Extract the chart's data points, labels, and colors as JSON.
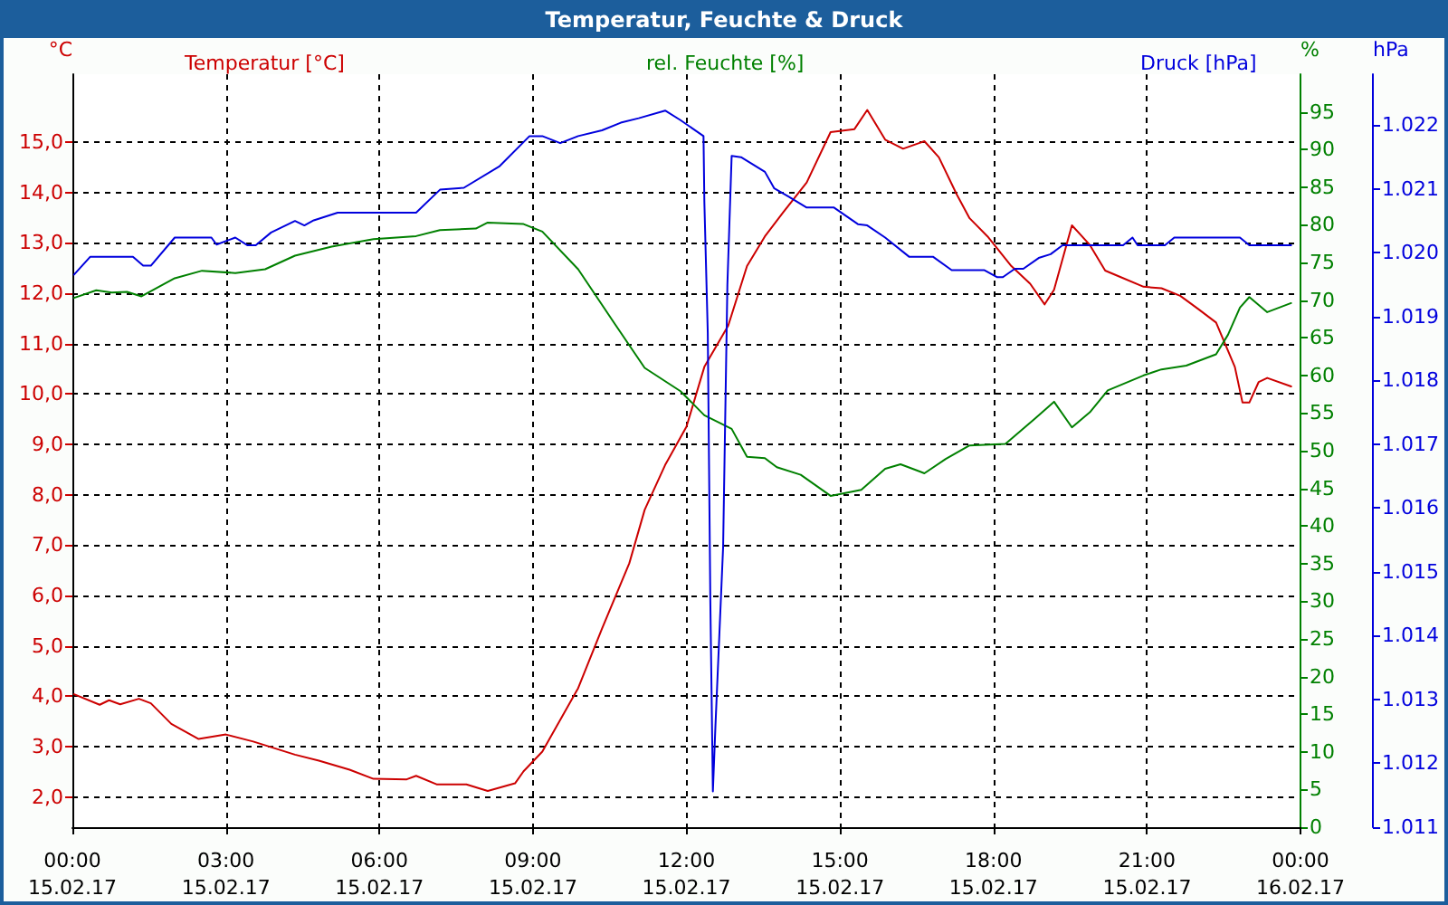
{
  "chart_data": {
    "type": "line",
    "title": "Temperatur, Feuchte & Druck",
    "ylabel": "°C",
    "y2label": "%",
    "y3label": "hPa",
    "xlim": [
      "--02-15T00:00",
      "--02-16T00:00"
    ],
    "xticks": [
      {
        "value": "--02-15T00:00",
        "label": "00:00\n15.02.17"
      },
      {
        "value": "--02-15T03:00",
        "label": "03:00\n15.02.17"
      },
      {
        "value": "--02-15T06:00",
        "label": "06:00\n15.02.17"
      },
      {
        "value": "--02-15T09:00",
        "label": "09:00\n15.02.17"
      },
      {
        "value": "--02-15T12:00",
        "label": "12:00\n15.02.17"
      },
      {
        "value": "--02-15T15:00",
        "label": "15:00\n15.02.17"
      },
      {
        "value": "--02-15T18:00",
        "label": "18:00\n15.02.17"
      },
      {
        "value": "--02-15T21:00",
        "label": "21:00\n15.02.17"
      },
      {
        "value": "--02-16T00:00",
        "label": "00:00\n16.02.17"
      }
    ],
    "ylim": [
      1.4,
      16.35
    ],
    "yticks": [
      {
        "value": 2,
        "label": "2,0"
      },
      {
        "value": 3,
        "label": "3,0"
      },
      {
        "value": 4,
        "label": "4,0"
      },
      {
        "value": 5,
        "label": "5,0"
      },
      {
        "value": 6,
        "label": "6,0"
      },
      {
        "value": 7,
        "label": "7,0"
      },
      {
        "value": 8,
        "label": "8,0"
      },
      {
        "value": 9,
        "label": "9,0"
      },
      {
        "value": 10,
        "label": "10,0"
      },
      {
        "value": 11,
        "label": "11,0"
      },
      {
        "value": 12,
        "label": "12,0"
      },
      {
        "value": 13,
        "label": "13,0"
      },
      {
        "value": 14,
        "label": "14,0"
      },
      {
        "value": 15,
        "label": "15,0"
      }
    ],
    "y2lim": [
      0,
      100
    ],
    "y2ticks": [
      0,
      5,
      10,
      15,
      20,
      25,
      30,
      35,
      40,
      45,
      50,
      55,
      60,
      65,
      70,
      75,
      80,
      85,
      90,
      95
    ],
    "y3lim": [
      1011,
      1022.8
    ],
    "y3ticks": [
      {
        "value": 1011,
        "label": "1.011"
      },
      {
        "value": 1012,
        "label": "1.012"
      },
      {
        "value": 1013,
        "label": "1.013"
      },
      {
        "value": 1014,
        "label": "1.014"
      },
      {
        "value": 1015,
        "label": "1.015"
      },
      {
        "value": 1016,
        "label": "1.016"
      },
      {
        "value": 1017,
        "label": "1.017"
      },
      {
        "value": 1018,
        "label": "1.018"
      },
      {
        "value": 1019,
        "label": "1.019"
      },
      {
        "value": 1020,
        "label": "1.020"
      },
      {
        "value": 1021,
        "label": "1.021"
      },
      {
        "value": 1022,
        "label": "1.022"
      }
    ],
    "grid": true,
    "legend": "top",
    "marker": "none",
    "line_style": "solid",
    "series": [
      {
        "name": "Temperatur [°C]",
        "color": "#cc0000",
        "axis": "y",
        "x": [
          "--02-15T00:02",
          "--02-15T00:32",
          "--02-15T00:43",
          "--02-15T00:56",
          "--02-15T01:18",
          "--02-15T01:32",
          "--02-15T01:56",
          "--02-15T02:28",
          "--02-15T03:00",
          "--02-15T03:32",
          "--02-15T04:21",
          "--02-15T04:49",
          "--02-15T05:25",
          "--02-15T05:53",
          "--02-15T06:32",
          "--02-15T06:43",
          "--02-15T07:07",
          "--02-15T07:42",
          "--02-15T08:07",
          "--02-15T08:39",
          "--02-15T08:49",
          "--02-15T09:11",
          "--02-15T09:53",
          "--02-15T10:21",
          "--02-15T10:53",
          "--02-15T11:11",
          "--02-15T11:35",
          "--02-15T12:00",
          "--02-15T12:21",
          "--02-15T12:49",
          "--02-15T13:11",
          "--02-15T13:32",
          "--02-15T13:53",
          "--02-15T14:21",
          "--02-15T14:49",
          "--02-15T15:17",
          "--02-15T15:32",
          "--02-15T15:53",
          "--02-15T16:14",
          "--02-15T16:39",
          "--02-15T16:56",
          "--02-15T17:17",
          "--02-15T17:32",
          "--02-15T17:53",
          "--02-15T18:21",
          "--02-15T18:43",
          "--02-15T19:00",
          "--02-15T19:11",
          "--02-15T19:32",
          "--02-15T19:53",
          "--02-15T20:11",
          "--02-15T20:28",
          "--02-15T20:56",
          "--02-15T21:17",
          "--02-15T21:39",
          "--02-15T22:00",
          "--02-15T22:21",
          "--02-15T22:43",
          "--02-15T22:52",
          "--02-15T23:00",
          "--02-15T23:11",
          "--02-15T23:21",
          "--02-15T23:49"
        ],
        "values": [
          4.04,
          3.83,
          3.92,
          3.84,
          3.95,
          3.86,
          3.45,
          3.15,
          3.24,
          3.1,
          2.84,
          2.72,
          2.54,
          2.36,
          2.35,
          2.42,
          2.25,
          2.25,
          2.12,
          2.27,
          2.51,
          2.9,
          4.16,
          5.34,
          6.64,
          7.7,
          8.59,
          9.35,
          10.54,
          11.36,
          12.54,
          13.13,
          13.6,
          14.2,
          15.2,
          15.26,
          15.64,
          15.05,
          14.87,
          15.02,
          14.7,
          13.96,
          13.49,
          13.13,
          12.54,
          12.19,
          11.78,
          12.07,
          13.35,
          12.96,
          12.45,
          12.33,
          12.13,
          12.1,
          11.95,
          11.69,
          11.42,
          10.54,
          9.83,
          9.83,
          10.24,
          10.32,
          10.15
        ]
      },
      {
        "name": "rel. Feuchte [%]",
        "color": "#008000",
        "axis": "y2",
        "x": [
          "--02-15T00:02",
          "--02-15T00:28",
          "--02-15T00:46",
          "--02-15T01:04",
          "--02-15T01:21",
          "--02-15T02:00",
          "--02-15T02:32",
          "--02-15T03:11",
          "--02-15T03:46",
          "--02-15T04:21",
          "--02-15T05:04",
          "--02-15T05:53",
          "--02-15T06:43",
          "--02-15T07:11",
          "--02-15T07:53",
          "--02-15T08:07",
          "--02-15T08:49",
          "--02-15T09:11",
          "--02-15T09:53",
          "--02-15T10:35",
          "--02-15T11:11",
          "--02-15T11:53",
          "--02-15T12:21",
          "--02-15T12:53",
          "--02-15T13:11",
          "--02-15T13:32",
          "--02-15T13:46",
          "--02-15T14:14",
          "--02-15T14:49",
          "--02-15T15:25",
          "--02-15T15:53",
          "--02-15T16:11",
          "--02-15T16:39",
          "--02-15T17:04",
          "--02-15T17:32",
          "--02-15T18:14",
          "--02-15T18:49",
          "--02-15T19:11",
          "--02-15T19:32",
          "--02-15T19:53",
          "--02-15T20:14",
          "--02-15T20:56",
          "--02-15T21:17",
          "--02-15T21:46",
          "--02-15T22:21",
          "--02-15T22:35",
          "--02-15T22:49",
          "--02-15T23:00",
          "--02-15T23:21",
          "--02-15T23:49"
        ],
        "values": [
          70.3,
          71.3,
          71.0,
          71.1,
          70.5,
          72.9,
          73.9,
          73.6,
          74.1,
          75.9,
          77.1,
          78.1,
          78.5,
          79.3,
          79.5,
          80.3,
          80.1,
          79.1,
          74.1,
          67.0,
          61.0,
          57.9,
          54.7,
          52.9,
          49.2,
          49.0,
          47.8,
          46.8,
          44.0,
          44.8,
          47.6,
          48.2,
          47.0,
          48.9,
          50.7,
          50.9,
          54.3,
          56.5,
          53.1,
          55.1,
          58.0,
          60.0,
          60.8,
          61.3,
          62.8,
          65.4,
          69.0,
          70.4,
          68.4,
          69.6
        ]
      },
      {
        "name": "Druck [hPa]",
        "color": "#0000dd",
        "axis": "y3",
        "x": [
          "--02-15T00:02",
          "--02-15T00:21",
          "--02-15T01:11",
          "--02-15T01:23",
          "--02-15T01:32",
          "--02-15T02:00",
          "--02-15T02:43",
          "--02-15T02:49",
          "--02-15T03:11",
          "--02-15T03:25",
          "--02-15T03:35",
          "--02-15T03:53",
          "--02-15T04:21",
          "--02-15T04:32",
          "--02-15T04:43",
          "--02-15T05:11",
          "--02-15T06:43",
          "--02-15T07:11",
          "--02-15T07:39",
          "--02-15T08:21",
          "--02-15T08:56",
          "--02-15T09:11",
          "--02-15T09:32",
          "--02-15T09:53",
          "--02-15T10:21",
          "--02-15T10:43",
          "--02-15T11:04",
          "--02-15T11:35",
          "--02-15T11:53",
          "--02-15T12:20",
          "--02-15T12:21",
          "--02-15T12:25",
          "--02-15T12:28",
          "--02-15T12:31",
          "--02-15T12:34",
          "--02-15T12:43",
          "--02-15T12:48",
          "--02-15T12:53",
          "--02-15T13:04",
          "--02-15T13:32",
          "--02-15T13:43",
          "--02-15T14:00",
          "--02-15T14:21",
          "--02-15T14:53",
          "--02-15T15:21",
          "--02-15T15:32",
          "--02-15T15:53",
          "--02-15T16:21",
          "--02-15T16:49",
          "--02-15T17:11",
          "--02-15T17:49",
          "--02-15T18:04",
          "--02-15T18:11",
          "--02-15T18:25",
          "--02-15T18:35",
          "--02-15T18:53",
          "--02-15T19:07",
          "--02-15T19:21",
          "--02-15T20:32",
          "--02-15T20:43",
          "--02-15T20:49",
          "--02-15T21:21",
          "--02-15T21:32",
          "--02-15T22:49",
          "--02-15T23:00",
          "--02-15T23:49"
        ],
        "values": [
          1019.66,
          1019.94,
          1019.94,
          1019.8,
          1019.8,
          1020.24,
          1020.24,
          1020.13,
          1020.24,
          1020.12,
          1020.12,
          1020.32,
          1020.5,
          1020.43,
          1020.51,
          1020.63,
          1020.63,
          1020.99,
          1021.02,
          1021.36,
          1021.83,
          1021.83,
          1021.72,
          1021.83,
          1021.92,
          1022.04,
          1022.11,
          1022.23,
          1022.08,
          1021.83,
          1020.8,
          1018.75,
          1014.55,
          1011.56,
          1012.59,
          1015.39,
          1019.5,
          1021.52,
          1021.5,
          1021.27,
          1021.01,
          1020.88,
          1020.71,
          1020.71,
          1020.45,
          1020.43,
          1020.24,
          1019.94,
          1019.94,
          1019.73,
          1019.73,
          1019.62,
          1019.62,
          1019.75,
          1019.75,
          1019.92,
          1019.98,
          1020.12,
          1020.12,
          1020.24,
          1020.12,
          1020.12,
          1020.24,
          1020.24,
          1020.12,
          1020.12
        ]
      }
    ]
  }
}
